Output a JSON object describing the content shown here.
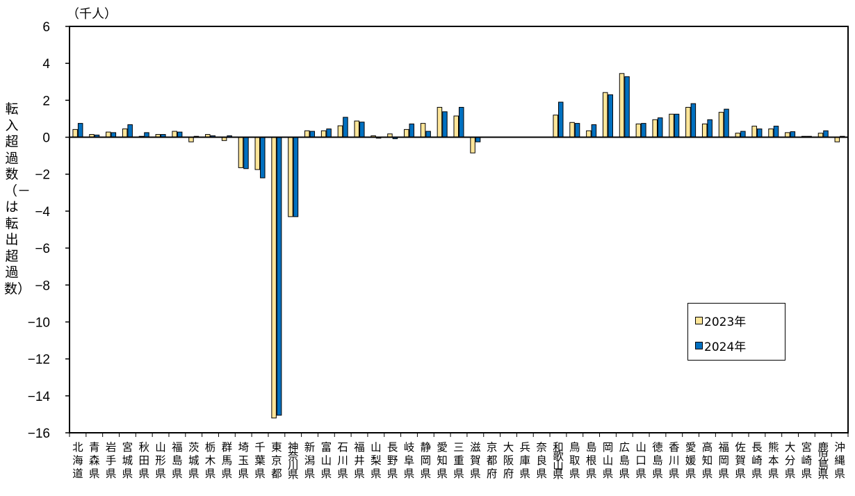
{
  "chart_data": {
    "type": "bar",
    "unit_label": "（千人）",
    "ylabel": "転入超過数（－は転出超過数）",
    "ylim": [
      -16,
      6
    ],
    "yticks": [
      "6",
      "4",
      "2",
      "0",
      "−2",
      "−4",
      "−6",
      "−8",
      "−10",
      "−12",
      "−14",
      "−16"
    ],
    "ytick_values": [
      6,
      4,
      2,
      0,
      -2,
      -4,
      -6,
      -8,
      -10,
      -12,
      -14,
      -16
    ],
    "grid": false,
    "legend_position": "lower-right",
    "categories": [
      "北海道",
      "青森県",
      "岩手県",
      "宮城県",
      "秋田県",
      "山形県",
      "福島県",
      "茨城県",
      "栃木県",
      "群馬県",
      "埼玉県",
      "千葉県",
      "東京都",
      "神奈川県",
      "新潟県",
      "富山県",
      "石川県",
      "福井県",
      "山梨県",
      "長野県",
      "岐阜県",
      "静岡県",
      "愛知県",
      "三重県",
      "滋賀県",
      "京都府",
      "大阪府",
      "兵庫県",
      "奈良県",
      "和歌山県",
      "鳥取県",
      "島根県",
      "岡山県",
      "広島県",
      "山口県",
      "徳島県",
      "香川県",
      "愛媛県",
      "高知県",
      "福岡県",
      "佐賀県",
      "長崎県",
      "熊本県",
      "大分県",
      "宮崎県",
      "鹿児島県",
      "沖縄県"
    ],
    "series": [
      {
        "name": "2023年",
        "color": "#FFE699",
        "values": [
          0.42,
          0.15,
          0.28,
          0.45,
          0.05,
          0.15,
          0.32,
          -0.25,
          0.15,
          -0.18,
          -1.65,
          -1.75,
          -15.2,
          -4.3,
          0.35,
          0.35,
          0.62,
          0.88,
          0.08,
          0.18,
          0.42,
          0.75,
          1.62,
          1.15,
          -0.85,
          0,
          0,
          0,
          0,
          1.2,
          0.8,
          0.35,
          2.42,
          3.45,
          0.72,
          0.95,
          1.25,
          1.62,
          0.72,
          1.35,
          0.22,
          0.6,
          0.45,
          0.25,
          0.05,
          0.22,
          -0.25
        ]
      },
      {
        "name": "2024年",
        "color": "#0070C0",
        "values": [
          0.75,
          0.12,
          0.25,
          0.68,
          0.25,
          0.15,
          0.28,
          0.05,
          0.08,
          0.08,
          -1.7,
          -2.2,
          -15.05,
          -4.3,
          0.32,
          0.45,
          1.08,
          0.82,
          -0.05,
          -0.08,
          0.72,
          0.32,
          1.38,
          1.62,
          -0.25,
          0,
          0,
          0,
          0,
          1.9,
          0.75,
          0.68,
          2.3,
          3.28,
          0.75,
          1.05,
          1.25,
          1.82,
          0.95,
          1.52,
          0.32,
          0.45,
          0.6,
          0.3,
          0.05,
          0.35,
          0.05
        ]
      }
    ]
  }
}
